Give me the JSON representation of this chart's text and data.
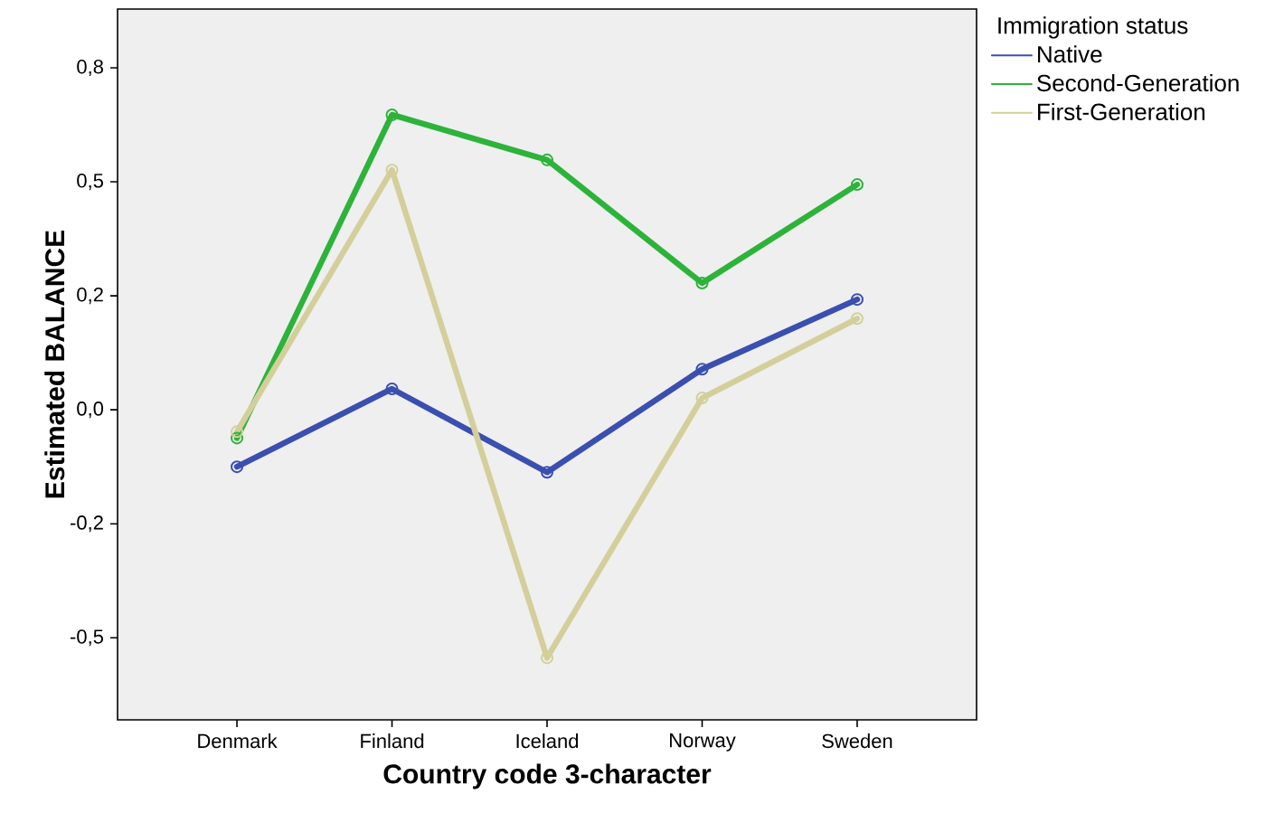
{
  "chart_data": {
    "type": "line",
    "xlabel": "Country code 3-character",
    "ylabel": "Estimated BALANCE",
    "legend_title": "Immigration status",
    "categories": [
      "Denmark",
      "Finland",
      "Iceland",
      "Norway",
      "Sweden"
    ],
    "series": [
      {
        "name": "Native",
        "color": "#3a4fb0",
        "values": [
          -0.125,
          0.046,
          -0.137,
          0.089,
          0.242
        ]
      },
      {
        "name": "Second-Generation",
        "color": "#2db33a",
        "values": [
          -0.062,
          0.647,
          0.548,
          0.278,
          0.494
        ]
      },
      {
        "name": "First-Generation",
        "color": "#d4cf9a",
        "values": [
          -0.048,
          0.526,
          -0.544,
          0.026,
          0.2
        ]
      }
    ],
    "ylim": [
      -0.68,
      0.879
    ],
    "yticks": [
      {
        "value": -0.5,
        "label": "-0,5"
      },
      {
        "value": -0.25,
        "label": "-0,2"
      },
      {
        "value": 0,
        "label": "0,0"
      },
      {
        "value": 0.25,
        "label": "0,2"
      },
      {
        "value": 0.5,
        "label": "0,5"
      },
      {
        "value": 0.75,
        "label": "0,8"
      }
    ],
    "marker": "circle",
    "line_style": "solid",
    "legend": "top right",
    "grid": false
  }
}
